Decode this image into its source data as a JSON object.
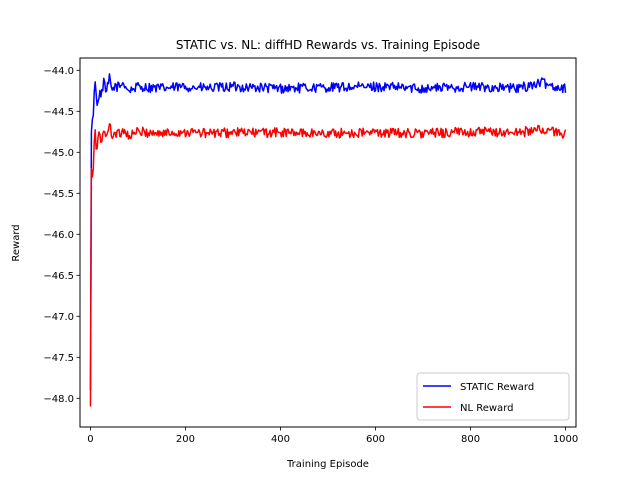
{
  "chart_data": {
    "type": "line",
    "title": "STATIC vs. NL: diffHD Rewards vs. Training Episode",
    "xlabel": "Training Episode",
    "ylabel": "Reward",
    "xlim": [
      -22,
      1022
    ],
    "ylim": [
      -48.35,
      -43.85
    ],
    "xticks": [
      0,
      200,
      400,
      600,
      800,
      1000
    ],
    "xtick_labels": [
      "0",
      "200",
      "400",
      "600",
      "800",
      "1000"
    ],
    "yticks": [
      -48.0,
      -47.5,
      -47.0,
      -46.5,
      -46.0,
      -45.5,
      -45.0,
      -44.5,
      -44.0
    ],
    "ytick_labels": [
      "−48.0",
      "−47.5",
      "−47.0",
      "−46.5",
      "−46.0",
      "−45.5",
      "−45.0",
      "−44.5",
      "−44.0"
    ],
    "grid": false,
    "legend_position": "lower-right",
    "series": [
      {
        "name": "STATIC Reward",
        "color": "#0000ff",
        "x": [
          0,
          1,
          2,
          3,
          4,
          5,
          6,
          8,
          10,
          12,
          14,
          16,
          18,
          20,
          22,
          25,
          28,
          32,
          36,
          40,
          45,
          50,
          60,
          70,
          80,
          100,
          150,
          200,
          250,
          300,
          400,
          500,
          600,
          700,
          800,
          900,
          950,
          980,
          1000
        ],
        "values": [
          -47.9,
          -45.1,
          -44.75,
          -45.0,
          -44.6,
          -44.4,
          -44.55,
          -44.3,
          -44.1,
          -44.25,
          -44.45,
          -44.4,
          -44.3,
          -44.2,
          -44.35,
          -44.25,
          -44.1,
          -44.3,
          -44.2,
          -44.1,
          -44.25,
          -44.2,
          -44.2,
          -44.15,
          -44.25,
          -44.2,
          -44.22,
          -44.2,
          -44.22,
          -44.2,
          -44.22,
          -44.21,
          -44.2,
          -44.22,
          -44.2,
          -44.22,
          -44.15,
          -44.2,
          -44.22
        ],
        "noise": 0.06
      },
      {
        "name": "NL Reward",
        "color": "#ff0000",
        "x": [
          0,
          1,
          2,
          3,
          4,
          5,
          6,
          8,
          10,
          12,
          14,
          16,
          18,
          20,
          22,
          25,
          28,
          32,
          36,
          40,
          45,
          50,
          60,
          70,
          80,
          100,
          150,
          200,
          250,
          300,
          400,
          500,
          600,
          700,
          800,
          900,
          950,
          980,
          1000
        ],
        "values": [
          -48.1,
          -45.5,
          -45.2,
          -46.2,
          -45.3,
          -45.0,
          -45.2,
          -44.9,
          -44.7,
          -45.0,
          -44.95,
          -44.85,
          -44.8,
          -44.75,
          -44.9,
          -44.8,
          -44.7,
          -44.85,
          -44.75,
          -44.65,
          -44.8,
          -44.75,
          -44.78,
          -44.72,
          -44.8,
          -44.75,
          -44.77,
          -44.75,
          -44.77,
          -44.76,
          -44.76,
          -44.77,
          -44.76,
          -44.77,
          -44.75,
          -44.76,
          -44.72,
          -44.76,
          -44.77
        ],
        "noise": 0.06
      }
    ]
  }
}
